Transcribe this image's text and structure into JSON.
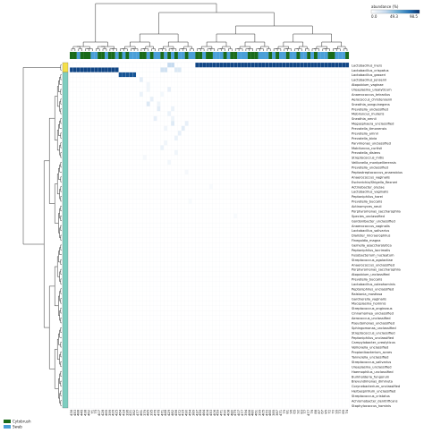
{
  "chart_data": {
    "type": "heatmap",
    "title": "",
    "colorbar": {
      "title": "abundance (%)",
      "ticks": [
        "0.0",
        "49.3",
        "98.5"
      ],
      "range": [
        0.0,
        98.5
      ],
      "colors": [
        "#ffffff",
        "#c6dbef",
        "#6baed6",
        "#2171b5",
        "#08306b"
      ]
    },
    "legend": {
      "position": "bottom-left",
      "items": [
        {
          "label": "Cytobrush",
          "color": "#1a6b1a"
        },
        {
          "label": "Swab",
          "color": "#4a9fd8"
        }
      ]
    },
    "row_group_colors": {
      "top": "#f5e04a",
      "rest": "#7ecec0"
    },
    "sample_type_pattern": [
      "Cytobrush",
      "Cytobrush",
      "Swab",
      "Cytobrush",
      "Cytobrush",
      "Cytobrush",
      "Swab",
      "Swab",
      "Cytobrush",
      "Cytobrush",
      "Swab",
      "Cytobrush",
      "Cytobrush",
      "Swab",
      "Cytobrush",
      "Swab",
      "Cytobrush",
      "Swab",
      "Swab",
      "Swab",
      "Cytobrush",
      "Cytobrush",
      "Swab",
      "Cytobrush",
      "Swab",
      "Swab",
      "Cytobrush",
      "Swab",
      "Cytobrush",
      "Swab",
      "Cytobrush",
      "Swab",
      "Swab",
      "Cytobrush",
      "Swab",
      "Swab",
      "Cytobrush",
      "Cytobrush",
      "Swab",
      "Cytobrush",
      "Cytobrush",
      "Swab",
      "Swab",
      "Swab",
      "Cytobrush",
      "Swab",
      "Cytobrush",
      "Cytobrush",
      "Swab",
      "Swab",
      "Swab",
      "Cytobrush",
      "Cytobrush",
      "Cytobrush",
      "Swab",
      "Swab",
      "Swab",
      "Cytobrush",
      "Swab",
      "Cytobrush",
      "Swab",
      "Swab",
      "Cytobrush",
      "Swab",
      "Swab",
      "Cytobrush",
      "Swab",
      "Swab",
      "Cytobrush",
      "Swab",
      "Cytobrush",
      "Swab",
      "Swab",
      "Swab",
      "Cytobrush",
      "Cytobrush",
      "Swab",
      "Swab",
      "Swab",
      "Cytobrush"
    ],
    "columns": [
      "436",
      "453",
      "488",
      "446",
      "438",
      "462",
      "71",
      "75",
      "407",
      "428",
      "465",
      "399",
      "426",
      "425",
      "464",
      "418",
      "396",
      "421",
      "382",
      "477",
      "461",
      "379",
      "485",
      "395",
      "476",
      "476",
      "471",
      "448",
      "429",
      "482",
      "456",
      "472",
      "416",
      "490",
      "454",
      "389",
      "437",
      "494",
      "464",
      "404",
      "453",
      "406",
      "459",
      "471",
      "490",
      "408",
      "480",
      "479",
      "407",
      "477",
      "394",
      "466",
      "480",
      "461",
      "399",
      "405",
      "470",
      "460",
      "385",
      "387",
      "471",
      "79",
      "81",
      "96",
      "65",
      "92",
      "83",
      "77",
      "477",
      "76",
      "88",
      "87",
      "67",
      "85",
      "72",
      "70",
      "99",
      "73",
      "85",
      "74"
    ],
    "rows": [
      "Lactobacillus_iners",
      "Lactobacillus_crispatus",
      "Lactobacillus_gasseri",
      "Lactobacillus_jensenii",
      "Atopobium_vaginae",
      "Ureaplasma_urealyticum",
      "Anaerococcus_tetradius",
      "Aerococcus_christensenii",
      "Sneathia_sanguinegens",
      "Prevotella_unclassified",
      "Mobiluncus_mulieris",
      "Sneathia_amnii",
      "Megasphaera_unclassified",
      "Prevotella_timonensis",
      "Prevotella_amnii",
      "Prevotella_bivia",
      "Parvimonas_unclassified",
      "Mobiluncus_curtisii",
      "Prevotella_disiens",
      "Streptococcus_mitis",
      "Veillonella_montpellierensis",
      "Prevotella_unclassified",
      "Peptostreptococcus_anaerobius",
      "Anaerococcus_vaginalis",
      "Escherichia/Shigella_flexneri",
      "Actinobacter_oryzae",
      "Lactobacillus_vaginalis",
      "Peptoniphilus_harei",
      "Prevotella_buccalis",
      "Actinomyces_neuii",
      "Porphyromonas_saccharophila",
      "Species_unclassified",
      "Gordonibacter_unclassified",
      "Anaerococcus_vaginalis",
      "Lactobacillus_salivarius",
      "Dialister_micraerophilus",
      "Finegoldia_magna",
      "Gemella_asaccharolytica",
      "Peptoniphilus_lacrimalis",
      "Fusobacterium_nucleatum",
      "Streptococcus_agalactiae",
      "Anaerococcus_unclassified",
      "Porphyromonas_saccharophila",
      "Atopobium_unclassified",
      "Prevotella_buccalis",
      "Lactobacillus_coleohominis",
      "Peptoniphilus_unclassified",
      "Ralstonia_mostissa",
      "Gardnerella_vaginalis",
      "Mycoplasma_hominis",
      "Streptococcus_anginosus",
      "Cinnamomea_unclassified",
      "Aerococcus_unclassified",
      "Pseudomonas_unclassified",
      "Sphingomonas_unclassified",
      "Streptococcus_unclassified",
      "Peptoniphilus_unclassified",
      "Campylobacter_ureolyticus",
      "Veillonella_unclassified",
      "Propionibacterium_acnes",
      "Tannerella_unclassified",
      "Streptococcus_salivarius",
      "Ureaplasma_unclassified",
      "Haemophilus_unclassified",
      "Burkholderia_fungorum",
      "Brevundimonas_diminuta",
      "Corynebacterium_unclassified",
      "Herbaspirillum_unclassified",
      "Streptococcus_cristatus",
      "Achromobacter_denitrificans",
      "Staphylococcus_hominis"
    ],
    "row_labels_visible": [
      "Lactobacillus_iners",
      "Lactobacillus_crispatus",
      "Lactobacillus_gasseri",
      "Lactobacillus_jensenii",
      "Atopobium_vaginae",
      "Ureaplasma_urealyticum",
      "Anaerococcus_tetradius",
      "Aerococcus_christensenii",
      "Sneathia_sanguinegens",
      "Prevotella_unclassified",
      "Mobiluncus_mulieris",
      "Sneathia_amnii",
      "Megasphaera_unclassified",
      "Prevotella_timonensis",
      "Prevotella_amnii",
      "Prevotella_bivia",
      "Parvimonas_unclassified",
      "Mobiluncus_curtisii",
      "Prevotella_disiens",
      "Streptococcus_mitis",
      "Veillonella_montpellierensis",
      "Prevotella_unclassified",
      "Peptostreptococcus_anaerobius",
      "Anaerococcus_vaginalis",
      "Escherichia/Shigella_flexneri",
      "Actinobacter_oryzae",
      "Lactobacillus_vaginalis",
      "Peptoniphilus_harei",
      "Prevotella_buccalis",
      "Actinomyces_neuii",
      "Porphyromonas_saccharophila",
      "Species_unclassified",
      "Gordonibacter_unclassified",
      "Anaerococcus_vaginalis",
      "Lactobacillus_salivarius",
      "Dialister_micraerophilus",
      "Finegoldia_magna",
      "Gemella_asaccharolytica",
      "Peptoniphilus_lacrimalis",
      "Fusobacterium_nucleatum",
      "Streptococcus_agalactiae",
      "Anaerococcus_unclassified",
      "Porphyromonas_saccharophila",
      "Atopobium_unclassified",
      "Prevotella_buccalis",
      "Lactobacillus_coleohominis",
      "Peptoniphilus_unclassified",
      "Ralstonia_mostissa",
      "Gardnerella_vaginalis",
      "Mycoplasma_hominis",
      "Streptococcus_anginosus",
      "Cinnamomea_unclassified",
      "Aerococcus_unclassified",
      "Pseudomonas_unclassified",
      "Sphingomonas_unclassified",
      "Streptococcus_unclassified",
      "Peptoniphilus_unclassified",
      "Campylobacter_ureolyticus",
      "Veillonella_unclassified",
      "Propionibacterium_acnes",
      "Tannerella_unclassified",
      "Streptococcus_salivarius",
      "Ureaplasma_unclassified",
      "Haemophilus_unclassified",
      "Burkholderia_fungorum",
      "Brevundimonas_diminuta",
      "Corynebacterium_unclassified",
      "Herbaspirillum_unclassified",
      "Streptococcus_cristatus",
      "Achromobacter_denitrificans",
      "Staphylococcus_hominis"
    ],
    "values_note_rows": "Row 0 high in columns 36-79; row 1 high in columns 0-13; row 2 high in columns 14-18; remaining rows near zero with sparse light cells",
    "high_cells": [
      {
        "row": 0,
        "cols_from": 36,
        "cols_to": 79,
        "value": 90
      },
      {
        "row": 1,
        "cols_from": 0,
        "cols_to": 13,
        "value": 90
      },
      {
        "row": 2,
        "cols_from": 14,
        "cols_to": 18,
        "value": 85
      },
      {
        "row": 1,
        "cols_from": 26,
        "cols_to": 27,
        "value": 20
      },
      {
        "row": 1,
        "cols_from": 30,
        "cols_to": 31,
        "value": 15
      },
      {
        "row": 0,
        "cols_from": 28,
        "cols_to": 29,
        "value": 25
      }
    ],
    "light_cells": [
      {
        "row": 3,
        "col": 20,
        "value": 12
      },
      {
        "row": 4,
        "col": 22,
        "value": 6
      },
      {
        "row": 5,
        "col": 28,
        "value": 10
      },
      {
        "row": 6,
        "col": 20,
        "value": 8
      },
      {
        "row": 7,
        "col": 23,
        "value": 10
      },
      {
        "row": 8,
        "col": 22,
        "value": 15
      },
      {
        "row": 9,
        "col": 25,
        "value": 12
      },
      {
        "row": 10,
        "col": 28,
        "value": 8
      },
      {
        "row": 11,
        "col": 24,
        "value": 10
      },
      {
        "row": 12,
        "col": 29,
        "value": 14
      },
      {
        "row": 13,
        "col": 32,
        "value": 12
      },
      {
        "row": 14,
        "col": 31,
        "value": 10
      },
      {
        "row": 15,
        "col": 30,
        "value": 8
      },
      {
        "row": 16,
        "col": 27,
        "value": 6
      },
      {
        "row": 17,
        "col": 26,
        "value": 8
      },
      {
        "row": 18,
        "col": 30,
        "value": 6
      },
      {
        "row": 19,
        "col": 21,
        "value": 4
      },
      {
        "row": 12,
        "col": 33,
        "value": 10
      },
      {
        "row": 9,
        "col": 29,
        "value": 8
      },
      {
        "row": 8,
        "col": 25,
        "value": 7
      },
      {
        "row": 6,
        "col": 26,
        "value": 5
      },
      {
        "row": 5,
        "col": 22,
        "value": 6
      },
      {
        "row": 11,
        "col": 29,
        "value": 7
      },
      {
        "row": 13,
        "col": 27,
        "value": 6
      },
      {
        "row": 20,
        "col": 28,
        "value": 5
      },
      {
        "row": 22,
        "col": 33,
        "value": 4
      },
      {
        "row": 25,
        "col": 40,
        "value": 3
      },
      {
        "row": 28,
        "col": 34,
        "value": 3
      },
      {
        "row": 31,
        "col": 47,
        "value": 3
      }
    ]
  }
}
